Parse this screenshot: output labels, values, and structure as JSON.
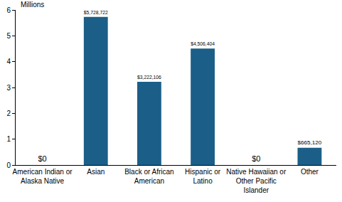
{
  "chart_data": {
    "type": "bar",
    "ylabel": "Millions",
    "categories": [
      "American Indian or\nAlaska Native",
      "Asian",
      "Black or African\nAmerican",
      "Hispanic or\nLatino",
      "Native Hawaiian or\nOther Pacific\nIslander",
      "Other"
    ],
    "values": [
      0,
      5.728722,
      3.222106,
      4.506404,
      0,
      0.66512
    ],
    "value_labels": [
      "$0",
      "$5,728,722",
      "$3,222,106",
      "$4,506,404",
      "$0",
      "$665,120"
    ],
    "color": "#1b5f88",
    "ylim": [
      0,
      6
    ],
    "yticks": [
      0,
      1,
      2,
      3,
      4,
      5,
      6
    ],
    "grid": false,
    "data_labels": true
  }
}
